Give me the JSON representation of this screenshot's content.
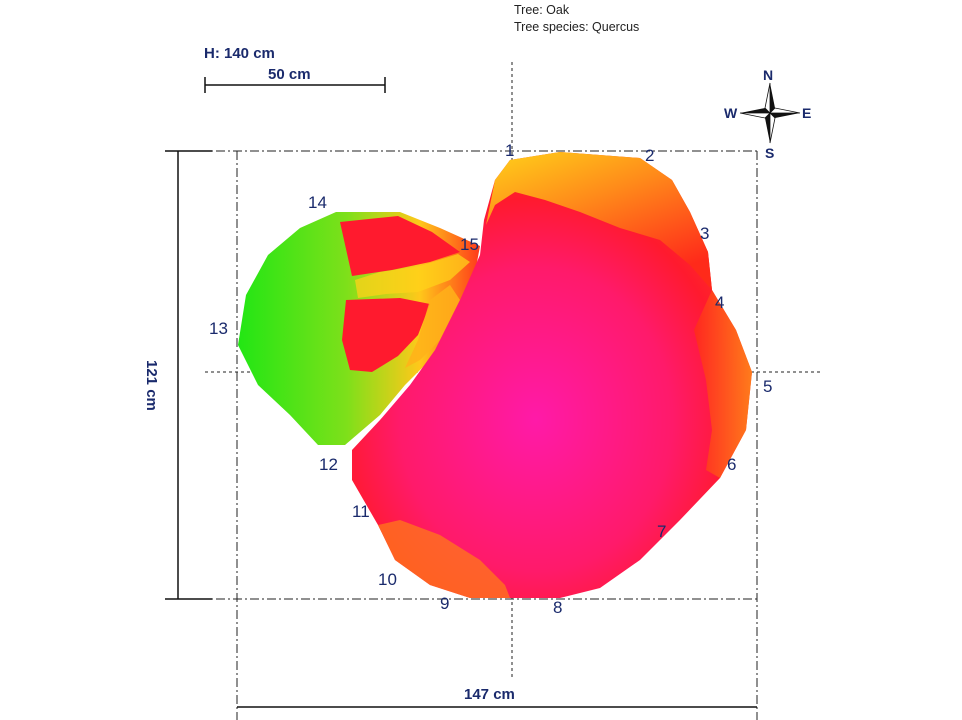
{
  "tree_info": {
    "tree": "Tree: Oak",
    "species": "Tree species: Quercus"
  },
  "scale": {
    "height_label": "H: 140 cm",
    "bar_label": "50 cm"
  },
  "dimensions": {
    "width": "147 cm",
    "depth": "121 cm"
  },
  "compass": {
    "n": "N",
    "s": "S",
    "e": "E",
    "w": "W"
  },
  "points": [
    "1",
    "2",
    "3",
    "4",
    "5",
    "6",
    "7",
    "8",
    "9",
    "10",
    "11",
    "12",
    "13",
    "14",
    "15"
  ],
  "colors": {
    "label": "#1a2a6c",
    "magenta": "#ff1aa8",
    "red": "#ff1a2e",
    "orange": "#ff8a1a",
    "yellow": "#ffd21a",
    "green": "#22e614"
  }
}
